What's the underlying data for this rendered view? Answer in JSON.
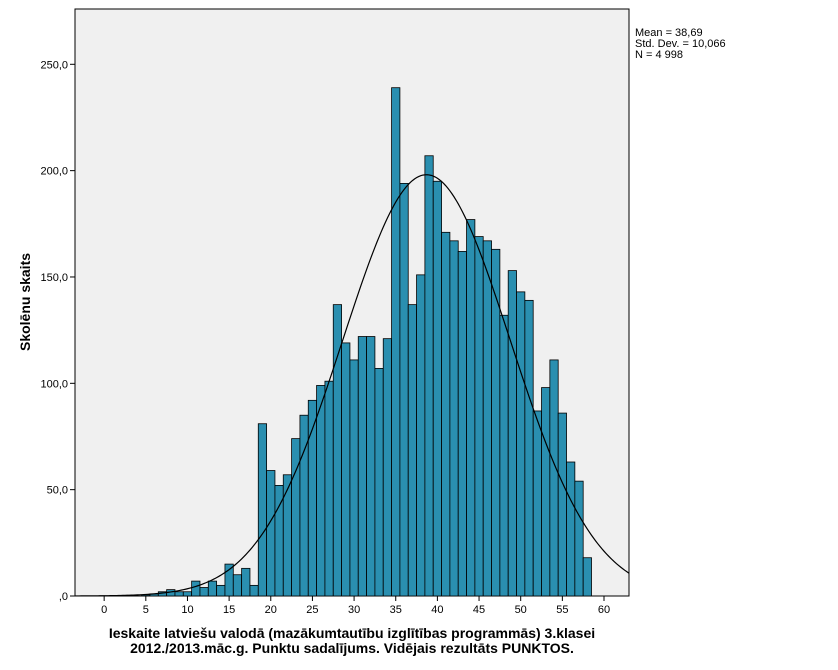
{
  "chart_data": {
    "type": "bar",
    "subtype": "histogram",
    "xlabel_lines": [
      "Ieskaite latviešu valodā (mazākumtautību izglītības programmās) 3.klasei",
      "2012./2013.māc.g. Punktu sadalījums. Vidējais rezultāts PUNKTOS."
    ],
    "ylabel": "Skolēnu skaits",
    "xlim": [
      -3.5,
      63
    ],
    "ylim": [
      0,
      276
    ],
    "x_ticks": [
      0,
      5,
      10,
      15,
      20,
      25,
      30,
      35,
      40,
      45,
      50,
      55,
      60
    ],
    "x_tick_labels": [
      "0",
      "5",
      "10",
      "15",
      "20",
      "25",
      "30",
      "35",
      "40",
      "45",
      "50",
      "55",
      "60"
    ],
    "y_ticks": [
      0,
      50,
      100,
      150,
      200,
      250
    ],
    "y_tick_labels": [
      ",0",
      "50,0",
      "100,0",
      "150,0",
      "200,0",
      "250,0"
    ],
    "bin_width": 1,
    "x": [
      5,
      6,
      7,
      8,
      9,
      10,
      11,
      12,
      13,
      14,
      15,
      16,
      17,
      18,
      19,
      20,
      21,
      22,
      23,
      24,
      25,
      26,
      27,
      28,
      29,
      30,
      31,
      32,
      33,
      34,
      35,
      36,
      37,
      38,
      39,
      40,
      41,
      42,
      43,
      44,
      45,
      46,
      47,
      48,
      49,
      50,
      51,
      52,
      53,
      54,
      55,
      56,
      57,
      58
    ],
    "values": [
      0.5,
      1,
      2,
      3,
      2,
      2,
      7,
      4,
      7,
      5,
      15,
      10,
      13,
      5,
      81,
      59,
      52,
      57,
      74,
      85,
      92,
      99,
      101,
      137,
      119,
      111,
      122,
      122,
      107,
      121,
      239,
      194,
      137,
      151,
      207,
      195,
      171,
      167,
      162,
      177,
      169,
      167,
      163,
      132,
      153,
      143,
      139,
      87,
      98,
      111,
      86,
      63,
      54,
      18
    ],
    "series": [
      {
        "values_ref": "values",
        "color": "#2a8fb0"
      }
    ],
    "normal_curve": {
      "mean": 38.69,
      "std": 10.066,
      "n": 4998
    },
    "grid": false,
    "legend": "none",
    "colors": {
      "bar_fill": "#2a8fb0",
      "bar_stroke": "#000000",
      "plot_bg": "#f0f0f0",
      "curve": "#000000"
    }
  },
  "stats": {
    "lines": [
      "Mean = 38,69",
      "Std. Dev. = 10,066",
      "N = 4 998"
    ]
  }
}
